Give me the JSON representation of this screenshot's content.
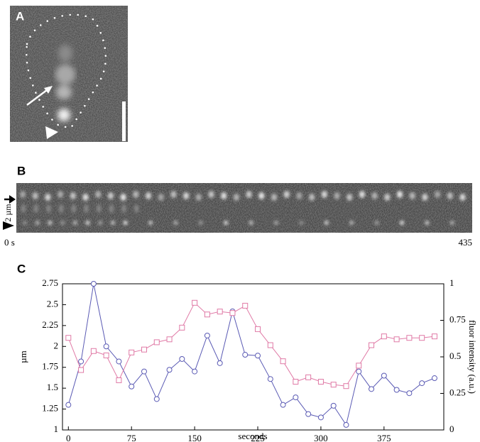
{
  "panels": {
    "a": {
      "label": "A"
    },
    "b": {
      "label": "B",
      "scale_label": "2 µm",
      "start_label": "0 s",
      "end_label": "435"
    },
    "c": {
      "label": "C"
    }
  },
  "chart_data": {
    "type": "line",
    "xlabel": "seconds",
    "ylabel": "µm",
    "y2label": "fluor intensity (a.u.)",
    "x": [
      0,
      15,
      30,
      45,
      60,
      75,
      90,
      105,
      120,
      135,
      150,
      165,
      180,
      195,
      210,
      225,
      240,
      255,
      270,
      285,
      300,
      315,
      330,
      345,
      360,
      375,
      390,
      405,
      420,
      435
    ],
    "series": [
      {
        "color": "#5a5ab4",
        "marker": "circle",
        "values": [
          1.3,
          1.82,
          2.75,
          2.0,
          1.82,
          1.52,
          1.7,
          1.37,
          1.72,
          1.85,
          1.7,
          2.13,
          1.8,
          2.42,
          1.9,
          1.89,
          1.61,
          1.3,
          1.39,
          1.19,
          1.15,
          1.29,
          1.06,
          1.7,
          1.49,
          1.65,
          1.48,
          1.44,
          1.56,
          1.62
        ]
      },
      {
        "color": "#e07aa6",
        "marker": "square",
        "axis": "y2",
        "values": [
          0.63,
          0.41,
          0.54,
          0.51,
          0.34,
          0.53,
          0.55,
          0.6,
          0.62,
          0.7,
          0.87,
          0.79,
          0.81,
          0.8,
          0.85,
          0.69,
          0.58,
          0.47,
          0.33,
          0.36,
          0.33,
          0.31,
          0.3,
          0.44,
          0.58,
          0.64,
          0.62,
          0.63,
          0.63,
          0.64
        ]
      }
    ],
    "xlim": [
      -7,
      446
    ],
    "xticks": [
      0,
      75,
      150,
      225,
      300,
      375
    ],
    "ylim": [
      1,
      2.75
    ],
    "yticks": [
      1,
      1.25,
      1.5,
      1.75,
      2,
      2.25,
      2.5,
      2.75
    ],
    "y2lim": [
      0,
      1
    ],
    "y2ticks": [
      0,
      0.25,
      0.5,
      0.75,
      1
    ]
  }
}
